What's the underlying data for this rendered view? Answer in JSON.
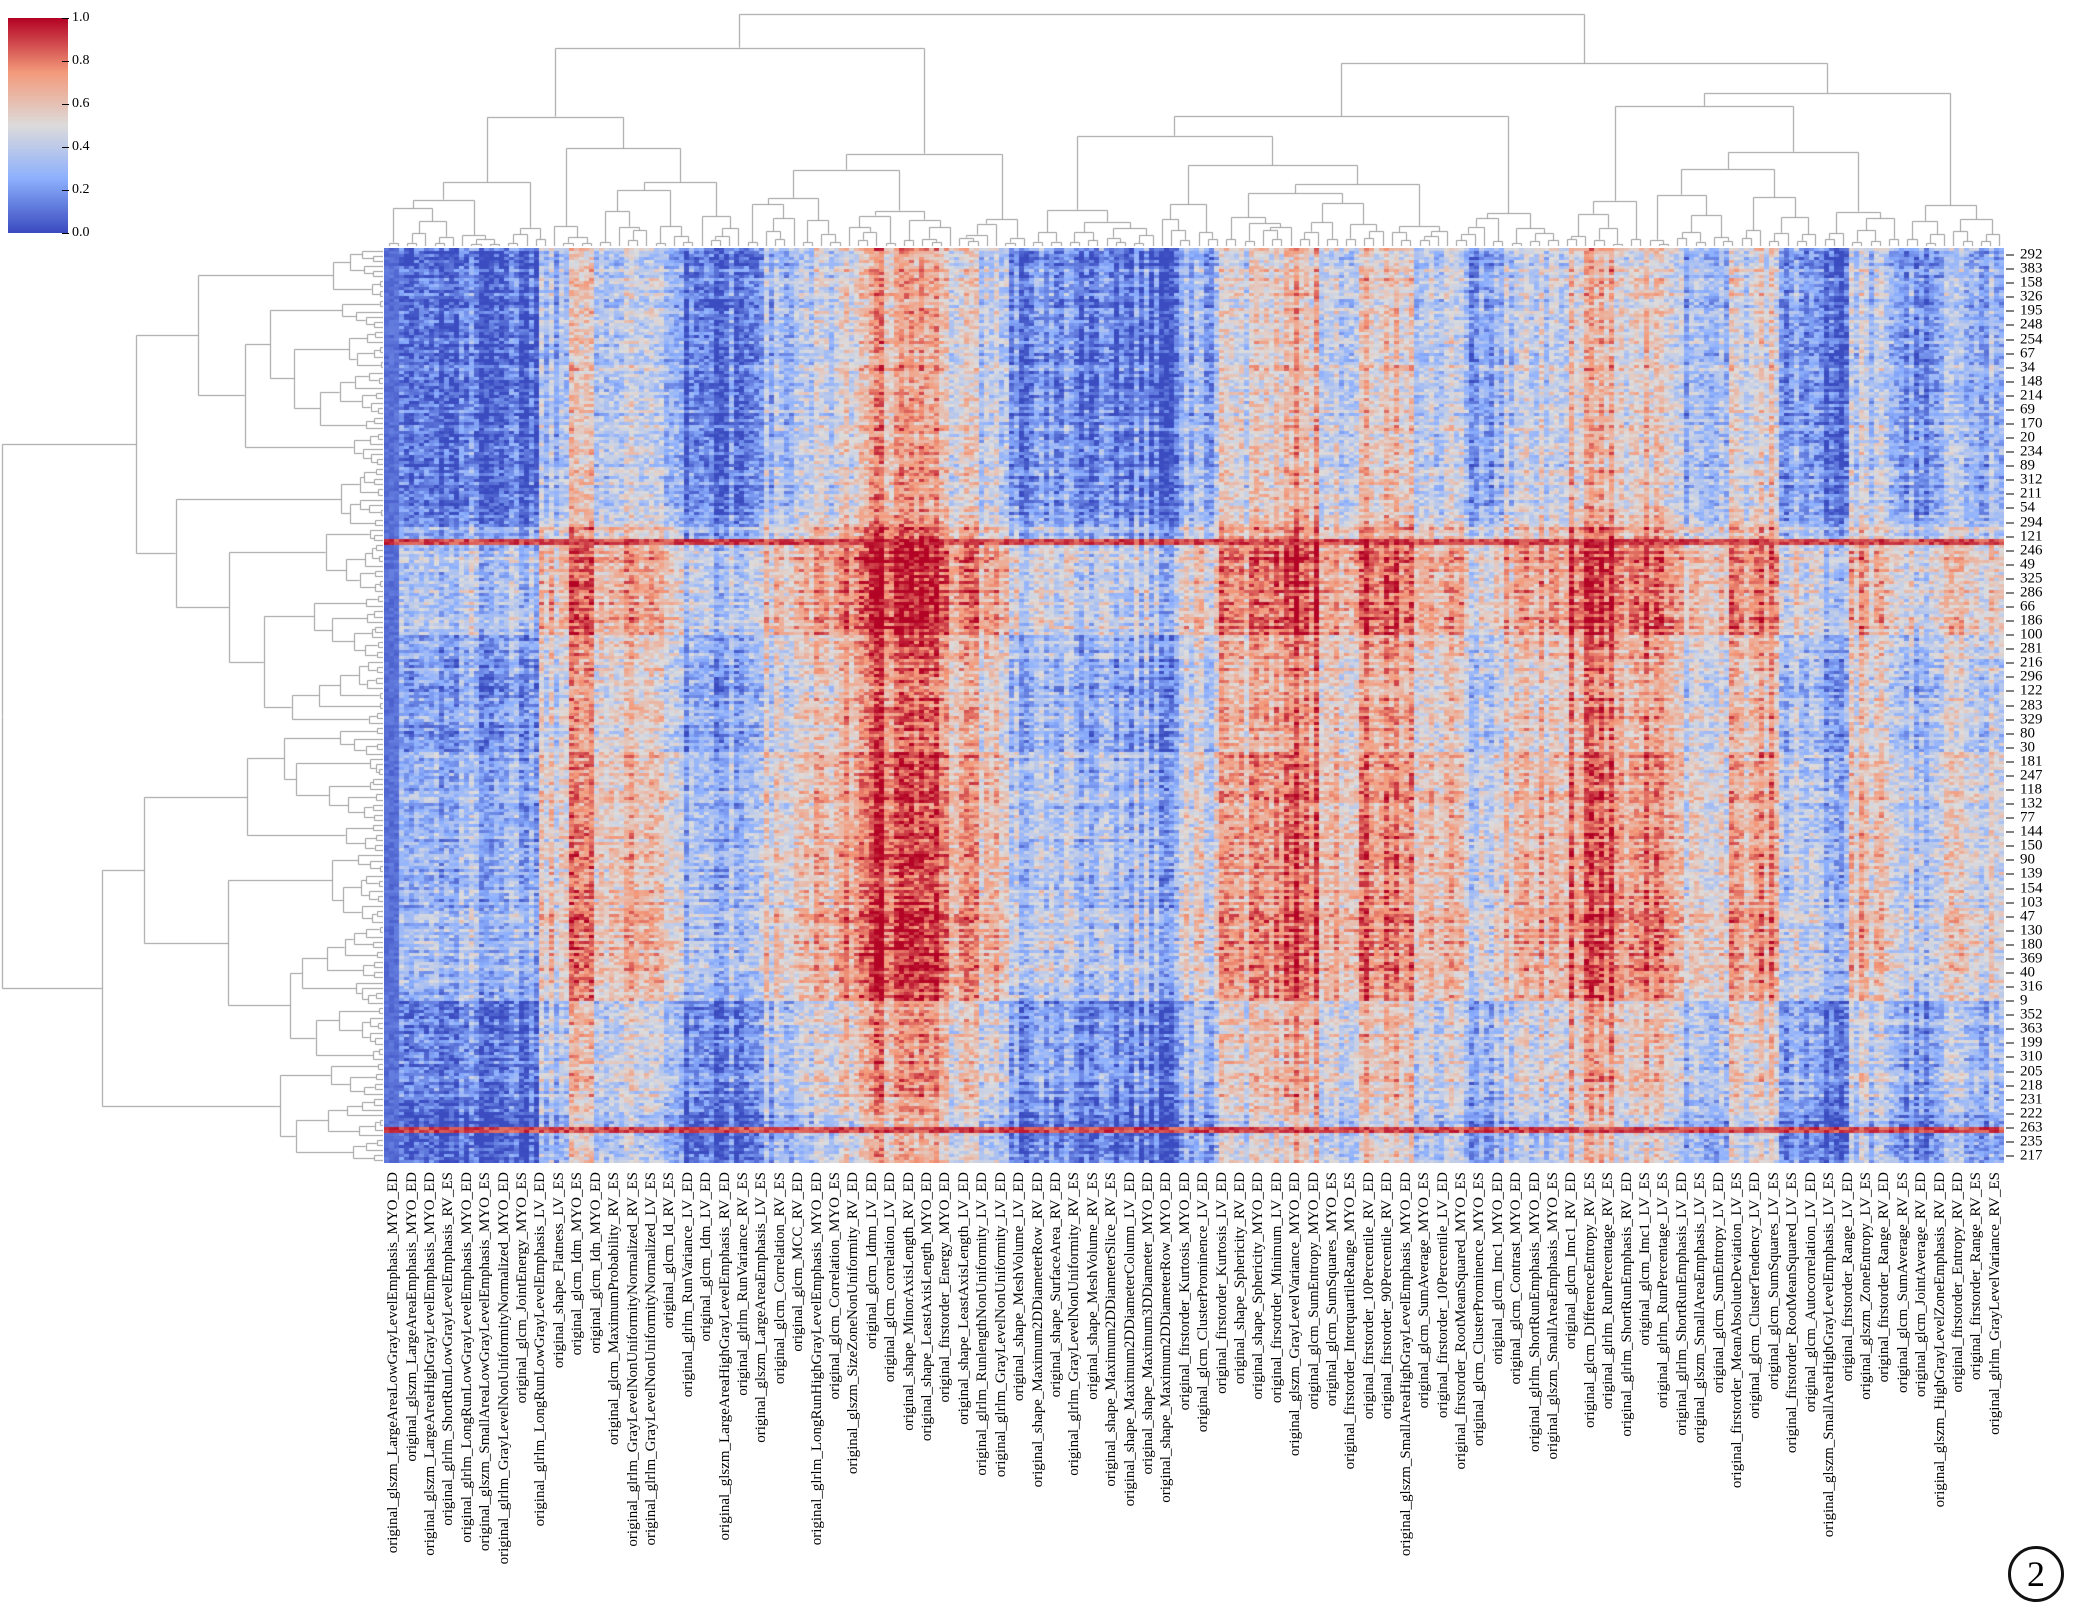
{
  "figure": {
    "caption_number": "2"
  },
  "colorbar": {
    "ticks": [
      "1.0",
      "0.8",
      "0.6",
      "0.4",
      "0.2",
      "0.0"
    ],
    "vmin": 0.0,
    "vmax": 1.0
  },
  "chart_data": {
    "type": "heatmap",
    "variant": "clustermap",
    "colormap": "coolwarm",
    "colormap_anchors": [
      [
        0.0,
        "#3b4cc0"
      ],
      [
        0.25,
        "#8db0fe"
      ],
      [
        0.5,
        "#dddcdc"
      ],
      [
        0.75,
        "#f49a7b"
      ],
      [
        1.0,
        "#b40426"
      ]
    ],
    "value_range": [
      0.0,
      1.0
    ],
    "legend_position": "top-left",
    "grid": false,
    "row_tick_labels": [
      "292",
      "383",
      "158",
      "326",
      "195",
      "248",
      "254",
      "67",
      "34",
      "148",
      "214",
      "69",
      "170",
      "20",
      "234",
      "89",
      "312",
      "211",
      "54",
      "294",
      "121",
      "246",
      "49",
      "325",
      "286",
      "66",
      "186",
      "100",
      "281",
      "216",
      "296",
      "122",
      "283",
      "329",
      "80",
      "30",
      "181",
      "247",
      "118",
      "132",
      "77",
      "144",
      "150",
      "90",
      "139",
      "154",
      "103",
      "47",
      "130",
      "180",
      "369",
      "40",
      "316",
      "9",
      "352",
      "363",
      "199",
      "310",
      "205",
      "218",
      "231",
      "222",
      "263",
      "235",
      "217"
    ],
    "col_tick_labels": [
      "original_glszm_LargeAreaLowGrayLevelEmphasis_MYO_ED",
      "original_glszm_LargeAreaEmphasis_MYO_ED",
      "original_glszm_LargeAreaHighGrayLevelEmphasis_MYO_ED",
      "original_glrlm_ShortRunLowGrayLevelEmphasis_RV_ES",
      "original_glrlm_LongRunLowGrayLevelEmphasis_MYO_ED",
      "original_glszm_SmallAreaLowGrayLevelEmphasis_MYO_ES",
      "original_glrlm_GrayLevelNonUniformityNormalized_MYO_ED",
      "original_glcm_JointEnergy_MYO_ES",
      "original_glrlm_LongRunLowGrayLevelEmphasis_LV_ED",
      "original_shape_Flatness_LV_ES",
      "original_glcm_Idm_MYO_ES",
      "original_glcm_Idn_MYO_ED",
      "original_glcm_MaximumProbability_RV_ES",
      "original_glrlm_GrayLevelNonUniformityNormalized_RV_ES",
      "original_glrlm_GrayLevelNonUniformityNormalized_LV_ES",
      "original_glcm_Id_RV_ES",
      "original_glrlm_RunVariance_LV_ED",
      "original_glcm_Idm_LV_ED",
      "original_glszm_LargeAreaHighGrayLevelEmphasis_RV_ED",
      "original_glrlm_RunVariance_RV_ES",
      "original_glszm_LargeAreaEmphasis_LV_ES",
      "original_glcm_Correlation_RV_ES",
      "original_glcm_MCC_RV_ED",
      "original_glrlm_LongRunHighGrayLevelEmphasis_MYO_ED",
      "original_glcm_Correlation_MYO_ES",
      "original_glszm_SizeZoneNonUniformity_RV_ED",
      "original_glcm_Idmn_LV_ED",
      "original_glcm_correlation_LV_ED",
      "original_shape_MinorAxisLength_RV_ED",
      "original_shape_LeastAxisLength_MYO_ED",
      "original_firstorder_Energy_MYO_ED",
      "original_shape_LeastAxisLength_LV_ED",
      "original_glrlm_RunlengthNonUniformity_LV_ED",
      "original_glrlm_GrayLevelNonUniformity_LV_ED",
      "original_shape_MeshVolume_LV_ED",
      "original_shape_Maximum2DDiameterRow_RV_ED",
      "original_shape_SurfaceArea_RV_ED",
      "original_glrlm_GrayLevelNonUniformity_RV_ES",
      "original_shape_MeshVolume_RV_ES",
      "original_shape_Maximum2DDiameterSlice_RV_ES",
      "original_shape_Maximum2DDiameterColumn_LV_ED",
      "original_shape_Maximum3DDiameter_MYO_ED",
      "original_shape_Maximum2DDiameterRow_MYO_ED",
      "original_firstorder_Kurtosis_MYO_ED",
      "original_glcm_ClusterProminence_LV_ED",
      "original_firstorder_Kurtosis_LV_ED",
      "original_shape_Sphericity_RV_ED",
      "original_shape_Sphericity_MYO_ED",
      "original_firsotrder_Minimum_LV_ED",
      "original_glszm_GrayLevelVariance_MYO_ED",
      "original_glcm_SumEntropy_MYO_ED",
      "original_glcm_SumSquares_MYO_ES",
      "original_firstorder_InterquartileRange_MYO_ES",
      "original_firstorder_10Percentile_RV_ED",
      "original_firstorder_90Percentile_RV_ED",
      "original_glszm_SmallAreaHighGrayLevelEmphasis_MYO_ED",
      "original_glcm_SumAverage_MYO_ES",
      "original_firstorder_10Percentile_LV_ED",
      "original_firstorder_RootMeanSquared_MYO_ES",
      "original_glcm_ClusterProminence_MYO_ES",
      "original_glcm_Imc1_MYO_ED",
      "original_glcm_Contrast_MYO_ED",
      "original_glrlm_ShortRunEmphasis_MYO_ED",
      "original_glszm_SmallAreaEmphasis_MYO_ES",
      "original_glcm_Imc1_RV_ED",
      "original_glcm_DifferenceEntropy_RV_ES",
      "original_glrlm_RunPercentage_RV_ES",
      "original_glrlm_ShortRunEmphasis_RV_ED",
      "original_glcm_Imc1_LV_ES",
      "original_glrlm_RunPercentage_LV_ES",
      "original_glrlm_ShortRunEmphasis_LV_ED",
      "original_glszm_SmallAreaEmphasis_LV_ES",
      "original_glcm_SumEntropy_LV_ED",
      "original_firstorder_MeanAbsoluteDeviation_LV_ES",
      "original_glcm_ClusterTendency_LV_ED",
      "original_glcm_SumSquares_LV_ES",
      "original_firstorder_RootMeanSquared_LV_ES",
      "original_glcm_Autocorrelation_LV_ED",
      "original_glszm_SmallAreaHighGrayLevelEmphasis_LV_ES",
      "original_firstorder_Range_LV_ED",
      "original_glszm_ZoneEntropy_LV_ES",
      "original_firstorder_Range_RV_ED",
      "original_glcm_SumAverage_RV_ES",
      "original_glcm_JointAverage_RV_ED",
      "original_glszm_HighGrayLevelZoneEmphasis_RV_ED",
      "original_firstorder_Entropy_RV_ED",
      "original_firstorder_Range_RV_ES",
      "original_glrlm_GrayLevelVariance_RV_ES"
    ],
    "pattern": {
      "grid": {
        "cols": 324,
        "rows": 305
      },
      "seed": 1337,
      "col_bands": [
        [
          0.0,
          0.008,
          0.06
        ],
        [
          0.008,
          0.095,
          0.17
        ],
        [
          0.095,
          0.112,
          0.42
        ],
        [
          0.112,
          0.127,
          0.74
        ],
        [
          0.127,
          0.155,
          0.45
        ],
        [
          0.155,
          0.17,
          0.58
        ],
        [
          0.17,
          0.185,
          0.42
        ],
        [
          0.185,
          0.232,
          0.2
        ],
        [
          0.232,
          0.265,
          0.38
        ],
        [
          0.265,
          0.292,
          0.55
        ],
        [
          0.292,
          0.345,
          0.76
        ],
        [
          0.345,
          0.365,
          0.6
        ],
        [
          0.365,
          0.385,
          0.48
        ],
        [
          0.385,
          0.472,
          0.24
        ],
        [
          0.472,
          0.49,
          0.15
        ],
        [
          0.49,
          0.515,
          0.35
        ],
        [
          0.515,
          0.54,
          0.55
        ],
        [
          0.54,
          0.575,
          0.68
        ],
        [
          0.575,
          0.6,
          0.52
        ],
        [
          0.6,
          0.635,
          0.62
        ],
        [
          0.635,
          0.665,
          0.45
        ],
        [
          0.665,
          0.69,
          0.3
        ],
        [
          0.69,
          0.73,
          0.48
        ],
        [
          0.73,
          0.765,
          0.66
        ],
        [
          0.765,
          0.8,
          0.6
        ],
        [
          0.8,
          0.83,
          0.42
        ],
        [
          0.83,
          0.86,
          0.55
        ],
        [
          0.86,
          0.885,
          0.28
        ],
        [
          0.885,
          0.902,
          0.18
        ],
        [
          0.902,
          0.935,
          0.45
        ],
        [
          0.935,
          0.958,
          0.3
        ],
        [
          0.958,
          1.001,
          0.36
        ]
      ],
      "row_bands": [
        [
          0.0,
          0.3,
          -0.06
        ],
        [
          0.3,
          0.33,
          0.1
        ],
        [
          0.33,
          0.42,
          0.22
        ],
        [
          0.42,
          0.55,
          0.06
        ],
        [
          0.55,
          0.72,
          0.12
        ],
        [
          0.72,
          0.82,
          0.16
        ],
        [
          0.82,
          0.93,
          -0.02
        ],
        [
          0.93,
          1.01,
          -0.1
        ]
      ],
      "hot_rows": [
        0.32,
        0.962
      ],
      "noise": {
        "col_streak": 0.26,
        "row_streak": 0.16,
        "cell": 0.28
      }
    },
    "dendrograms": {
      "color": "#9a9a9a",
      "top": {
        "leaves": 176,
        "seed": 42,
        "first_split": 0.4
      },
      "left": {
        "leaves": 180,
        "seed": 77,
        "first_split": 0.52
      }
    }
  }
}
